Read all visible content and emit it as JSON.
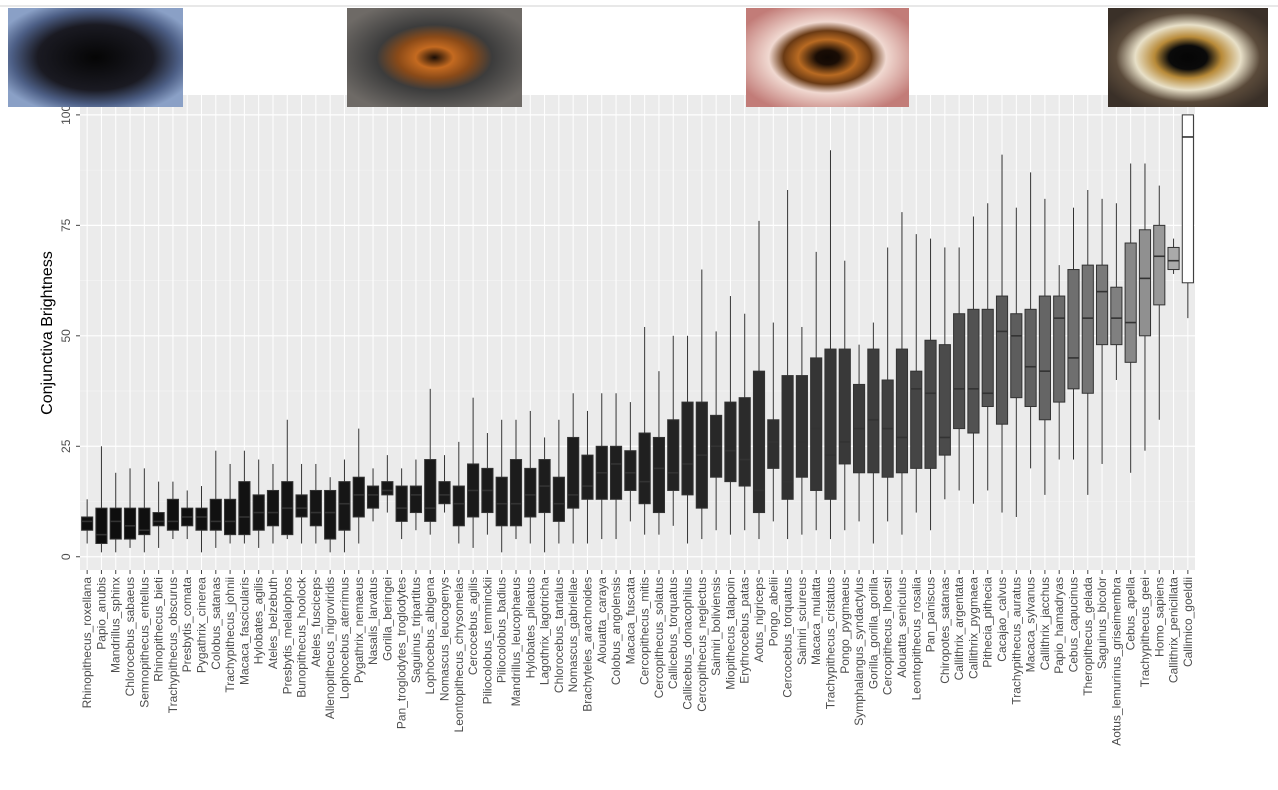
{
  "chart_data": {
    "type": "box",
    "ylabel": "Conjunctiva Brightness",
    "categories": [
      "Rhinopithecus_roxellana",
      "Papio_anubis",
      "Mandrillus_sphinx",
      "Chlorocebus_sabaeus",
      "Semnopithecus_entellus",
      "Rhinopithecus_bieti",
      "Trachypithecus_obscurus",
      "Presbytis_comata",
      "Pygathrix_cinerea",
      "Colobus_satanas",
      "Trachypithecus_johnii",
      "Macaca_fascicularis",
      "Hylobates_agilis",
      "Ateles_belzebuth",
      "Presbytis_melalophos",
      "Bunopithecus_hoolock",
      "Ateles_fusciceps",
      "Allenopithecus_nigroviridis",
      "Lophocebus_aterrimus",
      "Pygathrix_nemaeus",
      "Nasalis_larvatus",
      "Gorilla_beringei",
      "Pan_troglodytes_troglodytes",
      "Saguinus_tripartitus",
      "Lophocebus_albigena",
      "Nomascus_leucogenys",
      "Leontopithecus_chrysomelas",
      "Cercocebus_agilis",
      "Piliocolobus_temminckii",
      "Piliocolobus_badius",
      "Mandrillus_leucophaeus",
      "Hylobates_pileatus",
      "Lagothrix_lagotricha",
      "Chlorocebus_tantalus",
      "Nomascus_gabriellae",
      "Brachyteles_arachnoides",
      "Alouatta_caraya",
      "Colobus_angolensis",
      "Macaca_fuscata",
      "Cercopithecus_mitis",
      "Cercopithecus_solatus",
      "Callicebus_torquatus",
      "Callicebus_donacophilus",
      "Cercopithecus_neglectus",
      "Saimiri_boliviensis",
      "Miopithecus_talapoin",
      "Erythrocebus_patas",
      "Aotus_nigriceps",
      "Pongo_abelii",
      "Cercocebus_torquatus",
      "Saimiri_sciureus",
      "Macaca_mulatta",
      "Trachypithecus_cristatus",
      "Pongo_pygmaeus",
      "Symphalangus_syndactylus",
      "Gorilla_gorilla_gorilla",
      "Cercopithecus_lhoesti",
      "Alouatta_seniculus",
      "Leontopithecus_rosalia",
      "Pan_paniscus",
      "Chiropotes_satanas",
      "Callithrix_argentata",
      "Callithrix_pygmaea",
      "Pithecia_pithecia",
      "Cacajao_calvus",
      "Trachypithecus_auratus",
      "Macaca_sylvanus",
      "Callithrix_jacchus",
      "Papio_hamadryas",
      "Cebus_capucinus",
      "Theropithecus_gelada",
      "Saguinus_bicolor",
      "Aotus_lemurinus_griseimembra",
      "Cebus_apella",
      "Trachypithecus_geei",
      "Homo_sapiens",
      "Callithrix_penicillata",
      "Callimico_goeldii"
    ],
    "boxes": [
      {
        "min": 3,
        "q1": 6,
        "median": 8,
        "q3": 9,
        "max": 13
      },
      {
        "min": 1,
        "q1": 3,
        "median": 5,
        "q3": 11,
        "max": 25
      },
      {
        "min": 1,
        "q1": 4,
        "median": 8,
        "q3": 11,
        "max": 19
      },
      {
        "min": 2,
        "q1": 4,
        "median": 7,
        "q3": 11,
        "max": 20
      },
      {
        "min": 1,
        "q1": 5,
        "median": 6,
        "q3": 11,
        "max": 20
      },
      {
        "min": 2,
        "q1": 7,
        "median": 8,
        "q3": 10,
        "max": 17
      },
      {
        "min": 4,
        "q1": 6,
        "median": 8,
        "q3": 13,
        "max": 17
      },
      {
        "min": 4,
        "q1": 7,
        "median": 9,
        "q3": 11,
        "max": 15
      },
      {
        "min": 1,
        "q1": 6,
        "median": 9,
        "q3": 11,
        "max": 16
      },
      {
        "min": 2,
        "q1": 6,
        "median": 8,
        "q3": 13,
        "max": 24
      },
      {
        "min": 3,
        "q1": 5,
        "median": 8,
        "q3": 13,
        "max": 21
      },
      {
        "min": 3,
        "q1": 5,
        "median": 9,
        "q3": 17,
        "max": 24
      },
      {
        "min": 2,
        "q1": 6,
        "median": 10,
        "q3": 14,
        "max": 22
      },
      {
        "min": 3,
        "q1": 7,
        "median": 10,
        "q3": 15,
        "max": 21
      },
      {
        "min": 4,
        "q1": 5,
        "median": 11,
        "q3": 17,
        "max": 31
      },
      {
        "min": 3,
        "q1": 9,
        "median": 11,
        "q3": 14,
        "max": 21
      },
      {
        "min": 3,
        "q1": 7,
        "median": 10,
        "q3": 15,
        "max": 21
      },
      {
        "min": 1,
        "q1": 4,
        "median": 10,
        "q3": 15,
        "max": 18
      },
      {
        "min": 1,
        "q1": 6,
        "median": 12,
        "q3": 17,
        "max": 22
      },
      {
        "min": 3,
        "q1": 9,
        "median": 14,
        "q3": 18,
        "max": 29
      },
      {
        "min": 8,
        "q1": 11,
        "median": 14,
        "q3": 16,
        "max": 20
      },
      {
        "min": 10,
        "q1": 14,
        "median": 15,
        "q3": 17,
        "max": 23
      },
      {
        "min": 4,
        "q1": 8,
        "median": 11,
        "q3": 16,
        "max": 20
      },
      {
        "min": 6,
        "q1": 10,
        "median": 14,
        "q3": 16,
        "max": 22
      },
      {
        "min": 5,
        "q1": 8,
        "median": 11,
        "q3": 22,
        "max": 38
      },
      {
        "min": 10,
        "q1": 12,
        "median": 14,
        "q3": 17,
        "max": 23
      },
      {
        "min": 3,
        "q1": 7,
        "median": 12,
        "q3": 16,
        "max": 26
      },
      {
        "min": 2,
        "q1": 9,
        "median": 15,
        "q3": 21,
        "max": 36
      },
      {
        "min": 5,
        "q1": 10,
        "median": 15,
        "q3": 20,
        "max": 28
      },
      {
        "min": 1,
        "q1": 7,
        "median": 12,
        "q3": 18,
        "max": 31
      },
      {
        "min": 4,
        "q1": 7,
        "median": 12,
        "q3": 22,
        "max": 31
      },
      {
        "min": 3,
        "q1": 9,
        "median": 14,
        "q3": 20,
        "max": 33
      },
      {
        "min": 1,
        "q1": 10,
        "median": 16,
        "q3": 22,
        "max": 27
      },
      {
        "min": 3,
        "q1": 8,
        "median": 12,
        "q3": 18,
        "max": 31
      },
      {
        "min": 3,
        "q1": 11,
        "median": 14,
        "q3": 27,
        "max": 37
      },
      {
        "min": 3,
        "q1": 13,
        "median": 16,
        "q3": 23,
        "max": 33
      },
      {
        "min": 4,
        "q1": 13,
        "median": 19,
        "q3": 25,
        "max": 37
      },
      {
        "min": 4,
        "q1": 13,
        "median": 21,
        "q3": 25,
        "max": 37
      },
      {
        "min": 8,
        "q1": 15,
        "median": 19,
        "q3": 24,
        "max": 35
      },
      {
        "min": 5,
        "q1": 12,
        "median": 17,
        "q3": 28,
        "max": 52
      },
      {
        "min": 5,
        "q1": 10,
        "median": 20,
        "q3": 27,
        "max": 42
      },
      {
        "min": 7,
        "q1": 15,
        "median": 19,
        "q3": 31,
        "max": 50
      },
      {
        "min": 3,
        "q1": 14,
        "median": 21,
        "q3": 35,
        "max": 50
      },
      {
        "min": 4,
        "q1": 11,
        "median": 23,
        "q3": 35,
        "max": 65
      },
      {
        "min": 6,
        "q1": 18,
        "median": 25,
        "q3": 32,
        "max": 51
      },
      {
        "min": 5,
        "q1": 17,
        "median": 24,
        "q3": 35,
        "max": 59
      },
      {
        "min": 6,
        "q1": 16,
        "median": 22,
        "q3": 36,
        "max": 55
      },
      {
        "min": 4,
        "q1": 10,
        "median": 15,
        "q3": 42,
        "max": 76
      },
      {
        "min": 8,
        "q1": 20,
        "median": 26,
        "q3": 31,
        "max": 53
      },
      {
        "min": 4,
        "q1": 13,
        "median": 17,
        "q3": 41,
        "max": 83
      },
      {
        "min": 5,
        "q1": 18,
        "median": 26,
        "q3": 41,
        "max": 52
      },
      {
        "min": 6,
        "q1": 15,
        "median": 29,
        "q3": 45,
        "max": 69
      },
      {
        "min": 4,
        "q1": 13,
        "median": 23,
        "q3": 47,
        "max": 92
      },
      {
        "min": 6,
        "q1": 21,
        "median": 26,
        "q3": 47,
        "max": 67
      },
      {
        "min": 8,
        "q1": 19,
        "median": 29,
        "q3": 39,
        "max": 48
      },
      {
        "min": 3,
        "q1": 19,
        "median": 31,
        "q3": 47,
        "max": 53
      },
      {
        "min": 8,
        "q1": 18,
        "median": 29,
        "q3": 40,
        "max": 70
      },
      {
        "min": 5,
        "q1": 19,
        "median": 27,
        "q3": 47,
        "max": 78
      },
      {
        "min": 10,
        "q1": 20,
        "median": 38,
        "q3": 42,
        "max": 73
      },
      {
        "min": 6,
        "q1": 20,
        "median": 37,
        "q3": 49,
        "max": 72
      },
      {
        "min": 13,
        "q1": 23,
        "median": 27,
        "q3": 48,
        "max": 70
      },
      {
        "min": 15,
        "q1": 29,
        "median": 38,
        "q3": 55,
        "max": 70
      },
      {
        "min": 12,
        "q1": 28,
        "median": 38,
        "q3": 56,
        "max": 77
      },
      {
        "min": 15,
        "q1": 34,
        "median": 37,
        "q3": 56,
        "max": 80
      },
      {
        "min": 10,
        "q1": 30,
        "median": 51,
        "q3": 59,
        "max": 91
      },
      {
        "min": 9,
        "q1": 36,
        "median": 50,
        "q3": 55,
        "max": 79
      },
      {
        "min": 20,
        "q1": 34,
        "median": 43,
        "q3": 56,
        "max": 87
      },
      {
        "min": 14,
        "q1": 31,
        "median": 42,
        "q3": 59,
        "max": 81
      },
      {
        "min": 22,
        "q1": 35,
        "median": 54,
        "q3": 59,
        "max": 66
      },
      {
        "min": 22,
        "q1": 38,
        "median": 45,
        "q3": 65,
        "max": 79
      },
      {
        "min": 14,
        "q1": 37,
        "median": 54,
        "q3": 66,
        "max": 83
      },
      {
        "min": 21,
        "q1": 48,
        "median": 60,
        "q3": 66,
        "max": 81
      },
      {
        "min": 40,
        "q1": 48,
        "median": 54,
        "q3": 61,
        "max": 80
      },
      {
        "min": 19,
        "q1": 44,
        "median": 53,
        "q3": 71,
        "max": 89
      },
      {
        "min": 24,
        "q1": 50,
        "median": 63,
        "q3": 74,
        "max": 89
      },
      {
        "min": 31,
        "q1": 57,
        "median": 68,
        "q3": 75,
        "max": 84
      },
      {
        "min": 64,
        "q1": 65,
        "median": 67,
        "q3": 70,
        "max": 72
      },
      {
        "min": 54,
        "q1": 62,
        "median": 95,
        "q3": 100,
        "max": 100
      }
    ],
    "colors": [
      "#0d0d0d",
      "#0d0d0d",
      "#0e0e0e",
      "#0e0e0e",
      "#0f0f0f",
      "#0f0f0f",
      "#101010",
      "#101010",
      "#111111",
      "#111111",
      "#121212",
      "#121212",
      "#131313",
      "#131313",
      "#141414",
      "#141414",
      "#151515",
      "#151515",
      "#161616",
      "#161616",
      "#171717",
      "#171717",
      "#181818",
      "#181818",
      "#191919",
      "#191919",
      "#1a1a1a",
      "#1a1a1a",
      "#1b1b1b",
      "#1b1b1b",
      "#1c1c1c",
      "#1c1c1c",
      "#1d1d1d",
      "#1d1d1d",
      "#1e1e1e",
      "#1e1e1e",
      "#1f1f1f",
      "#1f1f1f",
      "#202020",
      "#202020",
      "#222222",
      "#232323",
      "#252525",
      "#262626",
      "#282828",
      "#292929",
      "#2b2b2b",
      "#2d2d2d",
      "#2f2f2f",
      "#313131",
      "#333333",
      "#353535",
      "#373737",
      "#393939",
      "#3b3b3b",
      "#3d3d3d",
      "#404040",
      "#424242",
      "#454545",
      "#484848",
      "#4b4b4b",
      "#4e4e4e",
      "#525252",
      "#555555",
      "#595959",
      "#5d5d5d",
      "#616161",
      "#656565",
      "#6a6a6a",
      "#6f6f6f",
      "#747474",
      "#7a7a7a",
      "#808080",
      "#888888",
      "#909090",
      "#999999",
      "#aaaaaa",
      "#ffffff"
    ],
    "ylim": [
      -3,
      104.5
    ],
    "yticks": [
      0,
      25,
      50,
      75,
      100
    ],
    "grid": true
  }
}
